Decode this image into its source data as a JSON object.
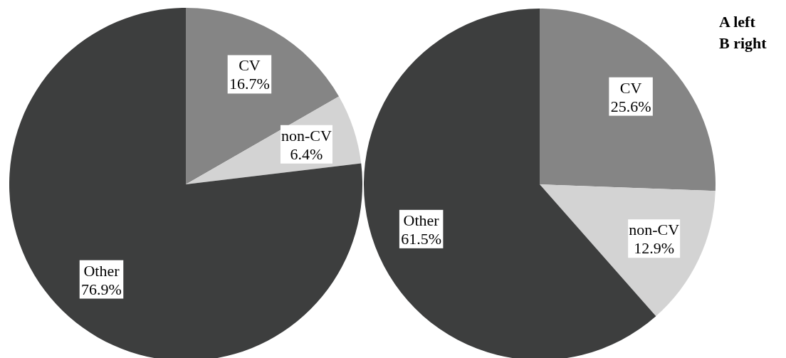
{
  "chart_data": [
    {
      "type": "pie",
      "categories": [
        "CV",
        "non-CV",
        "Other"
      ],
      "values": [
        16.7,
        6.4,
        76.9
      ],
      "value_labels": [
        "16.7%",
        "6.4%",
        "76.9%"
      ],
      "colors": [
        "#858585",
        "#d3d3d3",
        "#3d3e3e"
      ],
      "annotations": [
        "A left"
      ]
    },
    {
      "type": "pie",
      "categories": [
        "CV",
        "non-CV",
        "Other"
      ],
      "values": [
        25.6,
        12.9,
        61.5
      ],
      "value_labels": [
        "25.6%",
        "12.9%",
        "61.5%"
      ],
      "colors": [
        "#858585",
        "#d3d3d3",
        "#3d3e3e"
      ],
      "annotations": [
        "B right"
      ]
    }
  ]
}
